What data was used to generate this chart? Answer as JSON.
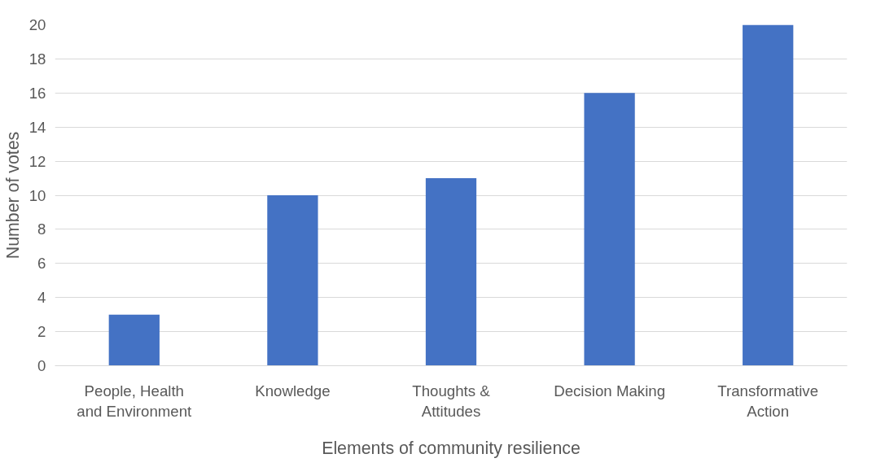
{
  "chart_data": {
    "type": "bar",
    "xlabel": "Elements of community resilience",
    "ylabel": "Number of votes",
    "categories": [
      "People, Health and Environment",
      "Knowledge",
      "Thoughts & Attitudes",
      "Decision Making",
      "Transformative Action"
    ],
    "values": [
      3,
      10,
      11,
      16,
      20
    ],
    "color": "#4472c4",
    "ylim": [
      0,
      20
    ],
    "yticks": [
      0,
      2,
      4,
      6,
      8,
      10,
      12,
      14,
      16,
      18,
      20
    ],
    "grid": "y"
  }
}
